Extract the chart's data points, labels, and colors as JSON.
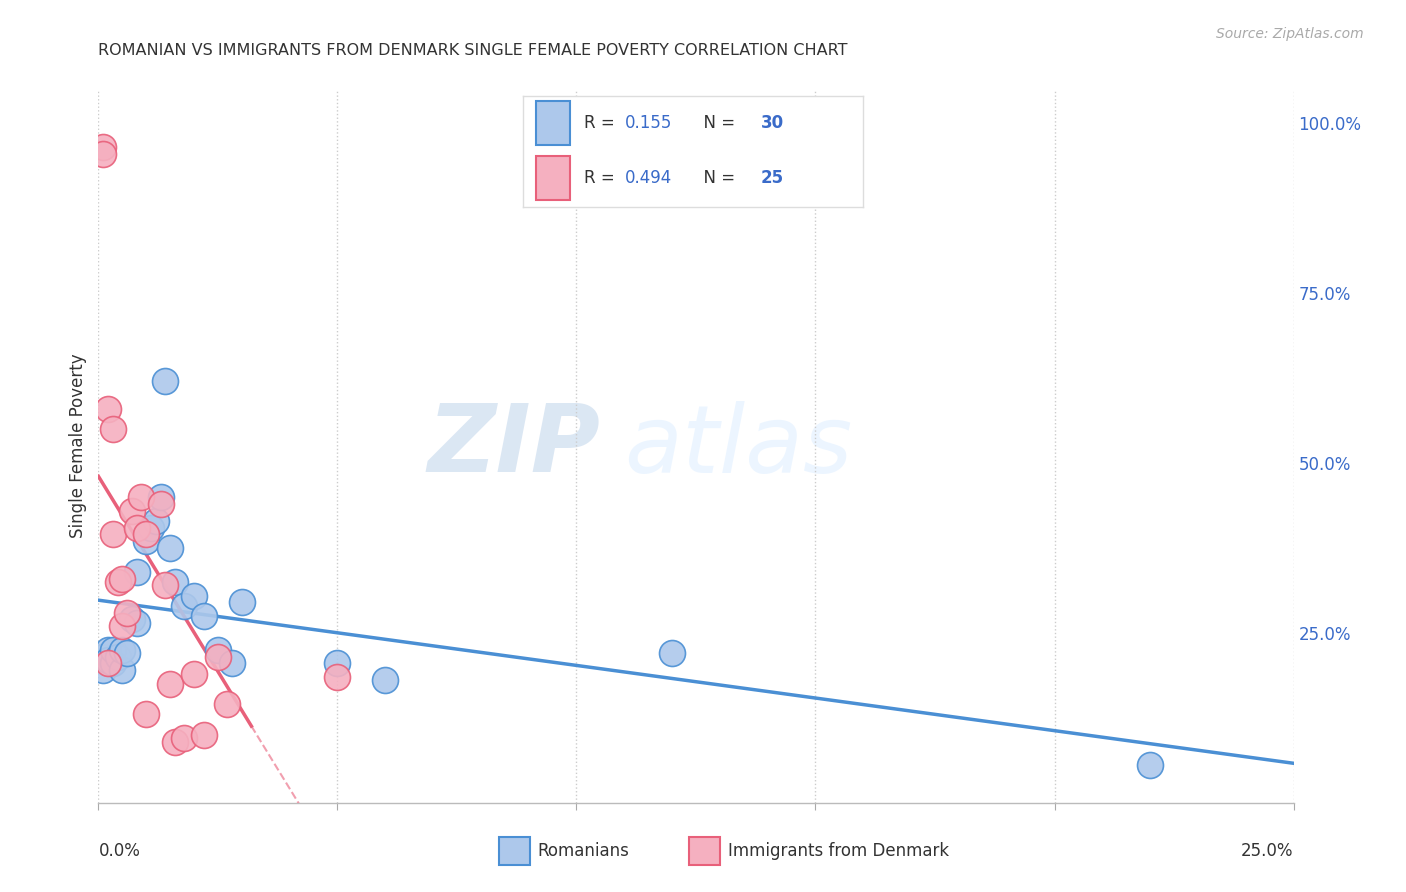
{
  "title": "ROMANIAN VS IMMIGRANTS FROM DENMARK SINGLE FEMALE POVERTY CORRELATION CHART",
  "source": "Source: ZipAtlas.com",
  "ylabel": "Single Female Poverty",
  "ylabel_right_ticks": [
    "100.0%",
    "75.0%",
    "50.0%",
    "25.0%"
  ],
  "ylabel_right_vals": [
    1.0,
    0.75,
    0.5,
    0.25
  ],
  "xlim": [
    0.0,
    0.25
  ],
  "ylim": [
    0.0,
    1.05
  ],
  "romanians_R": "0.155",
  "romanians_N": "30",
  "denmark_R": "0.494",
  "denmark_N": "25",
  "color_romanians": "#adc8eb",
  "color_denmark": "#f5b0c0",
  "color_romanians_line": "#4a8fd4",
  "color_denmark_line": "#e8607a",
  "legend_color_R": "#3a6bc9",
  "watermark_zip": "ZIP",
  "watermark_atlas": "atlas",
  "romanians_x": [
    0.001,
    0.001,
    0.002,
    0.002,
    0.003,
    0.003,
    0.004,
    0.005,
    0.005,
    0.006,
    0.007,
    0.008,
    0.008,
    0.01,
    0.011,
    0.012,
    0.013,
    0.014,
    0.015,
    0.016,
    0.018,
    0.02,
    0.022,
    0.025,
    0.028,
    0.03,
    0.05,
    0.06,
    0.12,
    0.22
  ],
  "romanians_y": [
    0.215,
    0.195,
    0.225,
    0.21,
    0.205,
    0.225,
    0.215,
    0.195,
    0.225,
    0.22,
    0.27,
    0.265,
    0.34,
    0.385,
    0.405,
    0.415,
    0.45,
    0.62,
    0.375,
    0.325,
    0.29,
    0.305,
    0.275,
    0.225,
    0.205,
    0.295,
    0.205,
    0.18,
    0.22,
    0.055
  ],
  "denmark_x": [
    0.001,
    0.001,
    0.002,
    0.002,
    0.003,
    0.003,
    0.004,
    0.005,
    0.005,
    0.006,
    0.007,
    0.008,
    0.009,
    0.01,
    0.01,
    0.013,
    0.014,
    0.015,
    0.016,
    0.018,
    0.02,
    0.022,
    0.025,
    0.027,
    0.05
  ],
  "denmark_y": [
    0.965,
    0.955,
    0.58,
    0.205,
    0.55,
    0.395,
    0.325,
    0.33,
    0.26,
    0.28,
    0.43,
    0.405,
    0.45,
    0.395,
    0.13,
    0.44,
    0.32,
    0.175,
    0.09,
    0.095,
    0.19,
    0.1,
    0.215,
    0.145,
    0.185
  ],
  "denmark_trend_xmax": 0.032,
  "denmark_trend_xmax_dashed": 0.25
}
